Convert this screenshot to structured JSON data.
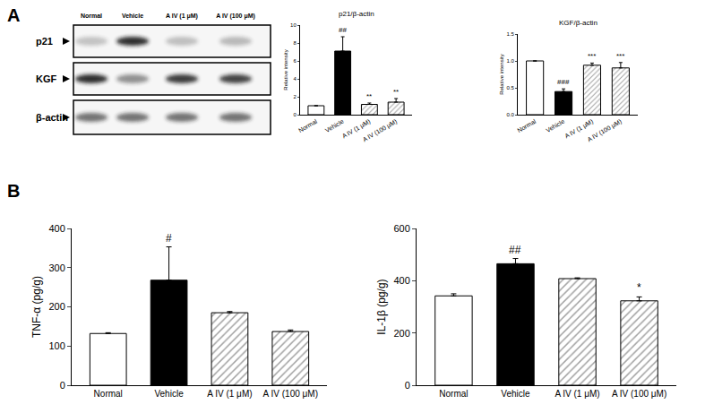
{
  "panel_labels": [
    "A",
    "B"
  ],
  "blot": {
    "lanes": [
      "Normal",
      "Vehicle",
      "A IV (1 μM)",
      "A IV (100 μM)"
    ],
    "rows": [
      "p21",
      "KGF",
      "β-actin"
    ]
  },
  "chart_data": [
    {
      "type": "bar",
      "title": "p21/β-actin",
      "ylabel": "Relative intensity",
      "categories": [
        "Normal",
        "Vehicle",
        "A IV (1 μM)",
        "A IV (100 μM)"
      ],
      "values": [
        1.0,
        7.1,
        1.15,
        1.4
      ],
      "error": [
        null,
        1.6,
        0.15,
        0.4
      ],
      "significance": [
        null,
        "##",
        "**",
        "**"
      ],
      "colors": [
        "#ffffff",
        "#000000",
        "#ffffff",
        "#ffffff"
      ],
      "ylim": [
        0,
        10
      ],
      "yticks": [
        0,
        2,
        4,
        6,
        8,
        10
      ],
      "grid": false
    },
    {
      "type": "bar",
      "title": "KGF/β-actin",
      "ylabel": "Relative intensity",
      "categories": [
        "Normal",
        "Vehicle",
        "A IV (1 μM)",
        "A IV (100 μM)"
      ],
      "values": [
        1.0,
        0.43,
        0.92,
        0.87
      ],
      "error": [
        null,
        0.05,
        0.04,
        0.1
      ],
      "significance": [
        null,
        "###",
        "***",
        "***"
      ],
      "colors": [
        "#ffffff",
        "#000000",
        "#ffffff",
        "#ffffff"
      ],
      "ylim": [
        0,
        1.5
      ],
      "yticks": [
        {
          "value": 0,
          "label": "0.0"
        },
        {
          "value": 0.5,
          "label": "0.5"
        },
        {
          "value": 1,
          "label": "1.0"
        },
        {
          "value": 1.5,
          "label": "1.5"
        }
      ],
      "grid": false
    },
    {
      "type": "bar",
      "ylabel": "TNF-α (pg/g)",
      "categories": [
        "Normal",
        "Vehicle",
        "A IV (1 μM)",
        "A IV (100 μM)"
      ],
      "values": [
        132,
        268,
        185,
        137
      ],
      "error": [
        2,
        85,
        3,
        4
      ],
      "significance": [
        null,
        "#",
        null,
        null
      ],
      "colors": [
        "#ffffff",
        "#000000",
        "#ffffff",
        "#ffffff"
      ],
      "ylim": [
        0,
        400
      ],
      "yticks": [
        0,
        100,
        200,
        300,
        400
      ],
      "grid": false
    },
    {
      "type": "bar",
      "ylabel": "IL-1β (pg/g)",
      "categories": [
        "Normal",
        "Vehicle",
        "A IV (1 μM)",
        "A IV (100 μM)"
      ],
      "values": [
        342,
        465,
        408,
        323
      ],
      "error": [
        8,
        20,
        3,
        15
      ],
      "significance": [
        null,
        "##",
        null,
        "*"
      ],
      "colors": [
        "#ffffff",
        "#000000",
        "#ffffff",
        "#ffffff"
      ],
      "ylim": [
        0,
        600
      ],
      "yticks": [
        0,
        200,
        400,
        600
      ],
      "grid": false
    }
  ]
}
